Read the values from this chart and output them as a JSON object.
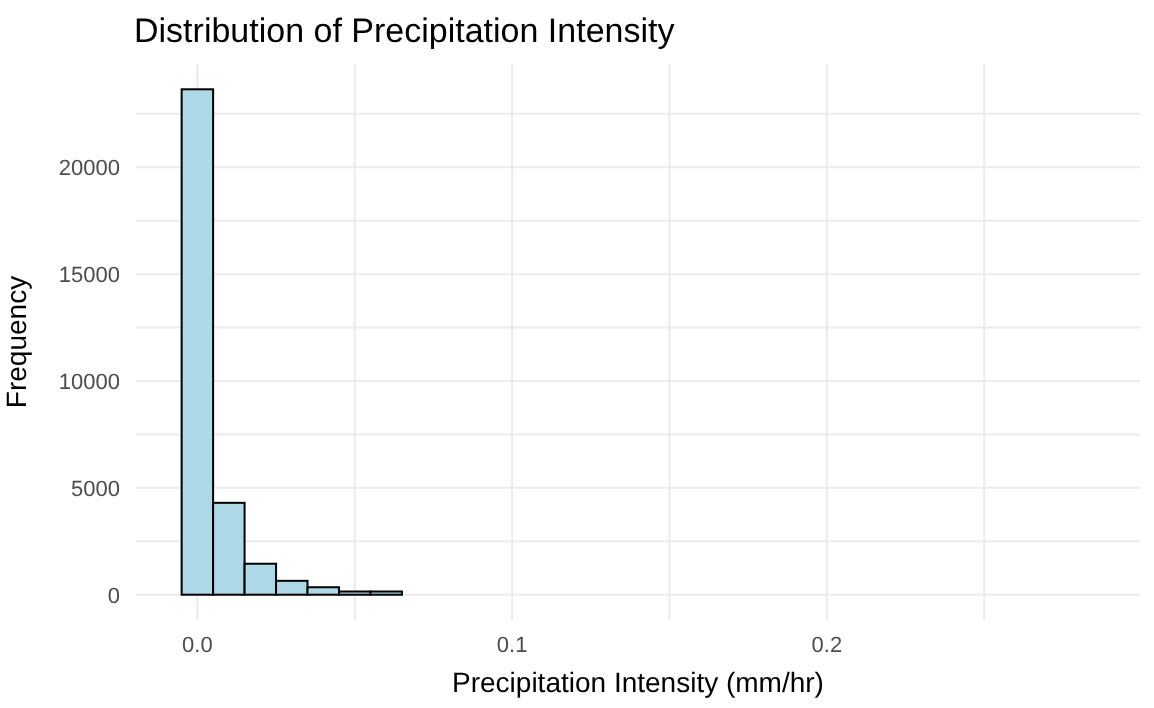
{
  "chart_data": {
    "type": "histogram",
    "title": "Distribution of Precipitation Intensity",
    "xlabel": "Precipitation Intensity (mm/hr)",
    "ylabel": "Frequency",
    "bins": [
      -0.005,
      0.005,
      0.015,
      0.025,
      0.035,
      0.045,
      0.055,
      0.065,
      0.075,
      0.085,
      0.095,
      0.105,
      0.115,
      0.125,
      0.135,
      0.145,
      0.155,
      0.165,
      0.175,
      0.185,
      0.195,
      0.205,
      0.215,
      0.225,
      0.235,
      0.245,
      0.255,
      0.265,
      0.275,
      0.285
    ],
    "values": [
      23650,
      4300,
      1450,
      650,
      350,
      150,
      150,
      0,
      0,
      0,
      0,
      0,
      0,
      0,
      0,
      0,
      0,
      0,
      0,
      0,
      0,
      0,
      0,
      0,
      0,
      0,
      0,
      0,
      0
    ],
    "color": "#add8e6",
    "xlim": [
      -0.0195,
      0.2995
    ],
    "xticks": [
      {
        "value": 0,
        "label": "0.0"
      },
      {
        "value": 0.05,
        "label": null
      },
      0.1,
      {
        "value": 0.15,
        "label": null
      },
      0.2,
      {
        "value": 0.25,
        "label": null
      }
    ],
    "ylim": [
      -1183,
      24833
    ],
    "yticks": [
      0,
      {
        "value": 2500,
        "label": null
      },
      5000,
      {
        "value": 7500,
        "label": null
      },
      10000,
      {
        "value": 12500,
        "label": null
      },
      15000,
      {
        "value": 17500,
        "label": null
      },
      20000,
      {
        "value": 22500,
        "label": null
      }
    ],
    "grid": true
  }
}
